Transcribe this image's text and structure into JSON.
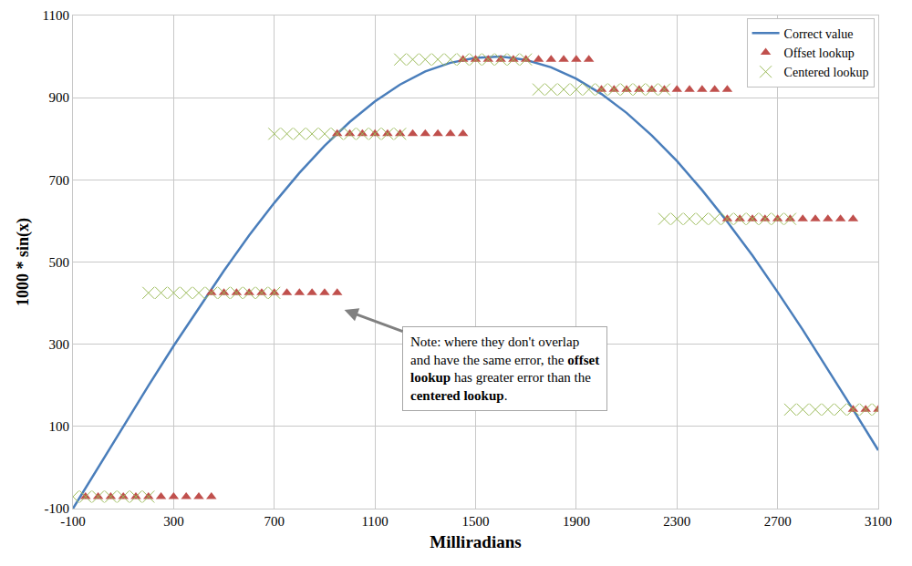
{
  "chart_data": {
    "type": "scatter",
    "xlabel": "Milliradians",
    "ylabel": "1000 * sin(x)",
    "xlim": [
      -100,
      3100
    ],
    "xticks": [
      -100,
      300,
      700,
      1100,
      1500,
      1900,
      2300,
      2700,
      3100
    ],
    "ylim": [
      -100,
      1100
    ],
    "yticks": [
      -100,
      100,
      300,
      500,
      700,
      900,
      1100
    ],
    "grid": true,
    "legend": "top right",
    "annotation": {
      "lines": [
        [
          {
            "text": "Note: where they don't overlap"
          }
        ],
        [
          {
            "text": "and have the same error, the "
          },
          {
            "text": "offset",
            "bold": true
          }
        ],
        [
          {
            "text": "lookup",
            "bold": true
          },
          {
            "text": " has greater error than the"
          }
        ],
        [
          {
            "text": "centered lookup",
            "bold": true
          },
          {
            "text": "."
          }
        ]
      ]
    },
    "series": [
      {
        "name": "Correct value",
        "type": "line",
        "color": "#4a7ebb",
        "line_style": "solid",
        "x": [
          -100,
          0,
          100,
          200,
          300,
          400,
          500,
          600,
          700,
          800,
          900,
          1000,
          1100,
          1200,
          1300,
          1400,
          1500,
          1600,
          1700,
          1800,
          1900,
          2000,
          2100,
          2200,
          2300,
          2400,
          2500,
          2600,
          2700,
          2800,
          2900,
          3000,
          3100
        ],
        "values": [
          -100,
          0,
          100,
          199,
          296,
          389,
          479,
          565,
          644,
          717,
          783,
          841,
          891,
          932,
          964,
          985,
          997,
          1000,
          992,
          974,
          946,
          909,
          863,
          808,
          746,
          675,
          598,
          516,
          427,
          335,
          239,
          141,
          42
        ]
      },
      {
        "name": "Offset lookup",
        "type": "scatter",
        "color": "#c0504d",
        "marker": "triangle-up",
        "x": [
          -50,
          0,
          50,
          100,
          150,
          200,
          250,
          300,
          350,
          400,
          450,
          450,
          500,
          550,
          600,
          650,
          700,
          750,
          800,
          850,
          900,
          950,
          950,
          1000,
          1050,
          1100,
          1150,
          1200,
          1250,
          1300,
          1350,
          1400,
          1450,
          1450,
          1500,
          1550,
          1600,
          1650,
          1700,
          1750,
          1800,
          1850,
          1900,
          1950,
          2000,
          2050,
          2100,
          2150,
          2200,
          2250,
          2300,
          2350,
          2400,
          2450,
          2500,
          2500,
          2550,
          2600,
          2650,
          2700,
          2750,
          2800,
          2850,
          2900,
          2950,
          3000,
          3000,
          3050,
          3100
        ],
        "values": [
          -71,
          -71,
          -71,
          -71,
          -71,
          -71,
          -71,
          -71,
          -71,
          -71,
          -71,
          425,
          425,
          425,
          425,
          425,
          425,
          425,
          425,
          425,
          425,
          425,
          812,
          812,
          812,
          812,
          812,
          812,
          812,
          812,
          812,
          812,
          812,
          993,
          993,
          993,
          993,
          993,
          993,
          993,
          993,
          993,
          993,
          993,
          920,
          920,
          920,
          920,
          920,
          920,
          920,
          920,
          920,
          920,
          920,
          605,
          605,
          605,
          605,
          605,
          605,
          605,
          605,
          605,
          605,
          605,
          141,
          141,
          141
        ]
      },
      {
        "name": "Centered lookup",
        "type": "scatter",
        "color": "#9bbb59",
        "marker": "x-thin-open",
        "x": [
          -100,
          -50,
          0,
          50,
          100,
          150,
          200,
          200,
          250,
          300,
          350,
          400,
          450,
          500,
          550,
          600,
          650,
          700,
          700,
          750,
          800,
          850,
          900,
          950,
          1000,
          1050,
          1100,
          1150,
          1200,
          1200,
          1250,
          1300,
          1350,
          1400,
          1450,
          1500,
          1550,
          1600,
          1650,
          1700,
          1750,
          1800,
          1850,
          1900,
          1950,
          2000,
          2050,
          2100,
          2150,
          2200,
          2250,
          2250,
          2300,
          2350,
          2400,
          2450,
          2500,
          2550,
          2600,
          2650,
          2700,
          2750,
          2750,
          2800,
          2850,
          2900,
          2950,
          3000,
          3050,
          3100
        ],
        "values": [
          -71,
          -71,
          -71,
          -71,
          -71,
          -71,
          -71,
          425,
          425,
          425,
          425,
          425,
          425,
          425,
          425,
          425,
          425,
          425,
          812,
          812,
          812,
          812,
          812,
          812,
          812,
          812,
          812,
          812,
          812,
          993,
          993,
          993,
          993,
          993,
          993,
          993,
          993,
          993,
          993,
          993,
          920,
          920,
          920,
          920,
          920,
          920,
          920,
          920,
          920,
          920,
          920,
          605,
          605,
          605,
          605,
          605,
          605,
          605,
          605,
          605,
          605,
          605,
          141,
          141,
          141,
          141,
          141,
          141,
          141,
          141
        ]
      }
    ]
  }
}
